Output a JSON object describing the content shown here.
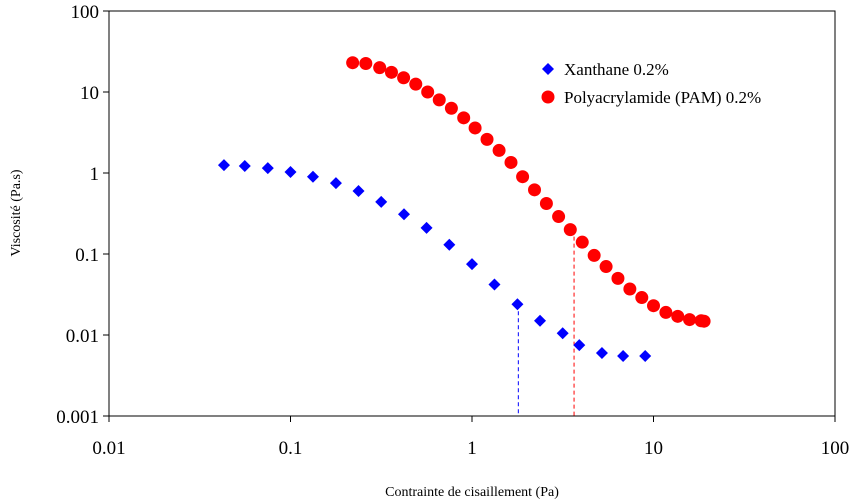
{
  "chart_data": {
    "type": "scatter",
    "title": "",
    "xlabel": "Contrainte de cisaillement (Pa)",
    "ylabel": "Viscosité (Pa.s)",
    "xscale": "log",
    "yscale": "log",
    "xlim": [
      0.01,
      100
    ],
    "ylim": [
      0.001,
      100
    ],
    "xticks": [
      0.01,
      0.1,
      1,
      10,
      100
    ],
    "xtick_labels": [
      "0.01",
      "0.1",
      "1",
      "10",
      "100"
    ],
    "yticks": [
      0.001,
      0.01,
      0.1,
      1,
      10,
      100
    ],
    "ytick_labels": [
      "0.001",
      "0.01",
      "0.1",
      "1",
      "10",
      "100"
    ],
    "grid": false,
    "legend_position": "top-right",
    "series": [
      {
        "name": "Xanthane 0.2%",
        "marker": "diamond",
        "color": "#0000ff",
        "x": [
          0.043,
          0.056,
          0.075,
          0.1,
          0.133,
          0.178,
          0.237,
          0.316,
          0.422,
          0.562,
          0.75,
          1.0,
          1.33,
          1.78,
          2.37,
          3.16,
          3.9,
          5.2,
          6.8,
          9.0
        ],
        "y": [
          1.25,
          1.22,
          1.15,
          1.03,
          0.9,
          0.75,
          0.6,
          0.44,
          0.31,
          0.21,
          0.13,
          0.075,
          0.042,
          0.024,
          0.015,
          0.0105,
          0.0075,
          0.006,
          0.0055,
          0.0055
        ]
      },
      {
        "name": "Polyacrylamide (PAM) 0.2%",
        "marker": "circle",
        "color": "#ff0000",
        "x": [
          0.22,
          0.26,
          0.31,
          0.36,
          0.42,
          0.49,
          0.57,
          0.66,
          0.77,
          0.9,
          1.04,
          1.21,
          1.41,
          1.64,
          1.9,
          2.21,
          2.57,
          3.0,
          3.48,
          4.05,
          4.71,
          5.48,
          6.37,
          7.41,
          8.62,
          10.0,
          11.7,
          13.6,
          15.8,
          18.3,
          19.0
        ],
        "y": [
          23,
          22.5,
          20,
          17.5,
          15,
          12.5,
          10,
          8,
          6.3,
          4.8,
          3.6,
          2.6,
          1.9,
          1.35,
          0.9,
          0.62,
          0.42,
          0.29,
          0.2,
          0.14,
          0.096,
          0.07,
          0.05,
          0.037,
          0.029,
          0.023,
          0.019,
          0.017,
          0.0155,
          0.015,
          0.0148
        ]
      }
    ],
    "annotations": [
      {
        "type": "vline-dashed",
        "x": 1.8,
        "y_top": 0.024,
        "color": "#0000ff"
      },
      {
        "type": "vline-dashed",
        "x": 3.65,
        "y_top": 0.2,
        "color": "#ff0000"
      }
    ]
  }
}
